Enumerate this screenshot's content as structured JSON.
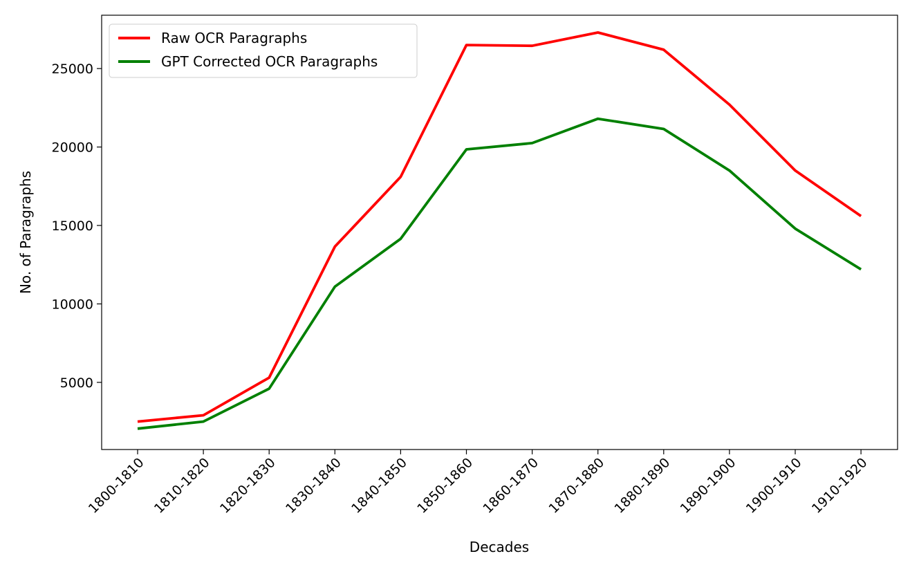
{
  "chart_data": {
    "type": "line",
    "title": "",
    "xlabel": "Decades",
    "ylabel": "No. of Paragraphs",
    "categories": [
      "1800-1810",
      "1810-1820",
      "1820-1830",
      "1830-1840",
      "1840-1850",
      "1850-1860",
      "1860-1870",
      "1870-1880",
      "1880-1890",
      "1890-1900",
      "1900-1910",
      "1910-1920"
    ],
    "series": [
      {
        "name": "Raw OCR Paragraphs",
        "color": "#ff0000",
        "values": [
          2500,
          2900,
          5300,
          13650,
          18100,
          26500,
          26450,
          27300,
          26200,
          22700,
          18500,
          15600
        ]
      },
      {
        "name": "GPT Corrected OCR Paragraphs",
        "color": "#008000",
        "values": [
          2050,
          2500,
          4600,
          11100,
          14150,
          19850,
          20250,
          21800,
          21150,
          18500,
          14800,
          12200
        ]
      }
    ],
    "y_ticks": [
      5000,
      10000,
      15000,
      20000,
      25000
    ],
    "ylim": [
      720,
      28400
    ],
    "grid": false,
    "legend_position": "top-left"
  }
}
